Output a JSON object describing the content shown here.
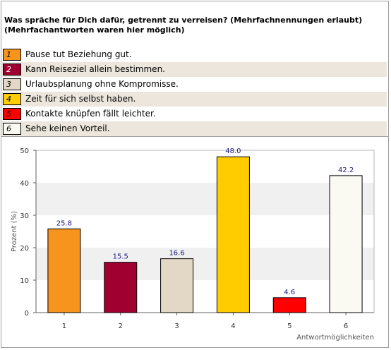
{
  "question": {
    "line1": "Was spräche für Dich dafür, getrennt zu verreisen? (Mehrfachnennungen erlaubt)",
    "line2": "(Mehrfachantworten waren hier möglich)"
  },
  "legend": [
    {
      "num": "1",
      "label": "Pause tut Beziehung gut.",
      "color": "#f7941d"
    },
    {
      "num": "2",
      "label": "Kann Reiseziel allein bestimmen.",
      "color": "#a00030"
    },
    {
      "num": "3",
      "label": "Urlaubsplanung ohne Kompromisse.",
      "color": "#e3d8c6"
    },
    {
      "num": "4",
      "label": "Zeit für sich selbst haben.",
      "color": "#ffcc00"
    },
    {
      "num": "5",
      "label": "Kontakte knüpfen fällt leichter.",
      "color": "#ff0000"
    },
    {
      "num": "6",
      "label": "Sehe keinen Vorteil.",
      "color": "#fafaf2"
    }
  ],
  "chart_data": {
    "type": "bar",
    "categories": [
      "1",
      "2",
      "3",
      "4",
      "5",
      "6"
    ],
    "values": [
      25.8,
      15.5,
      16.6,
      48.0,
      4.6,
      42.2
    ],
    "value_labels": [
      "25.8",
      "15.5",
      "16.6",
      "48.0",
      "4.6",
      "42.2"
    ],
    "colors": [
      "#f7941d",
      "#a00030",
      "#e3d8c6",
      "#ffcc00",
      "#ff0000",
      "#fafaf2"
    ],
    "ylabel": "Prozent (%)",
    "xlabel": "Antwortmöglichkeiten",
    "ylim": [
      0,
      50
    ],
    "yticks": [
      "0",
      "10",
      "20",
      "30",
      "40",
      "50"
    ],
    "grid": "alternating horizontal bands"
  }
}
